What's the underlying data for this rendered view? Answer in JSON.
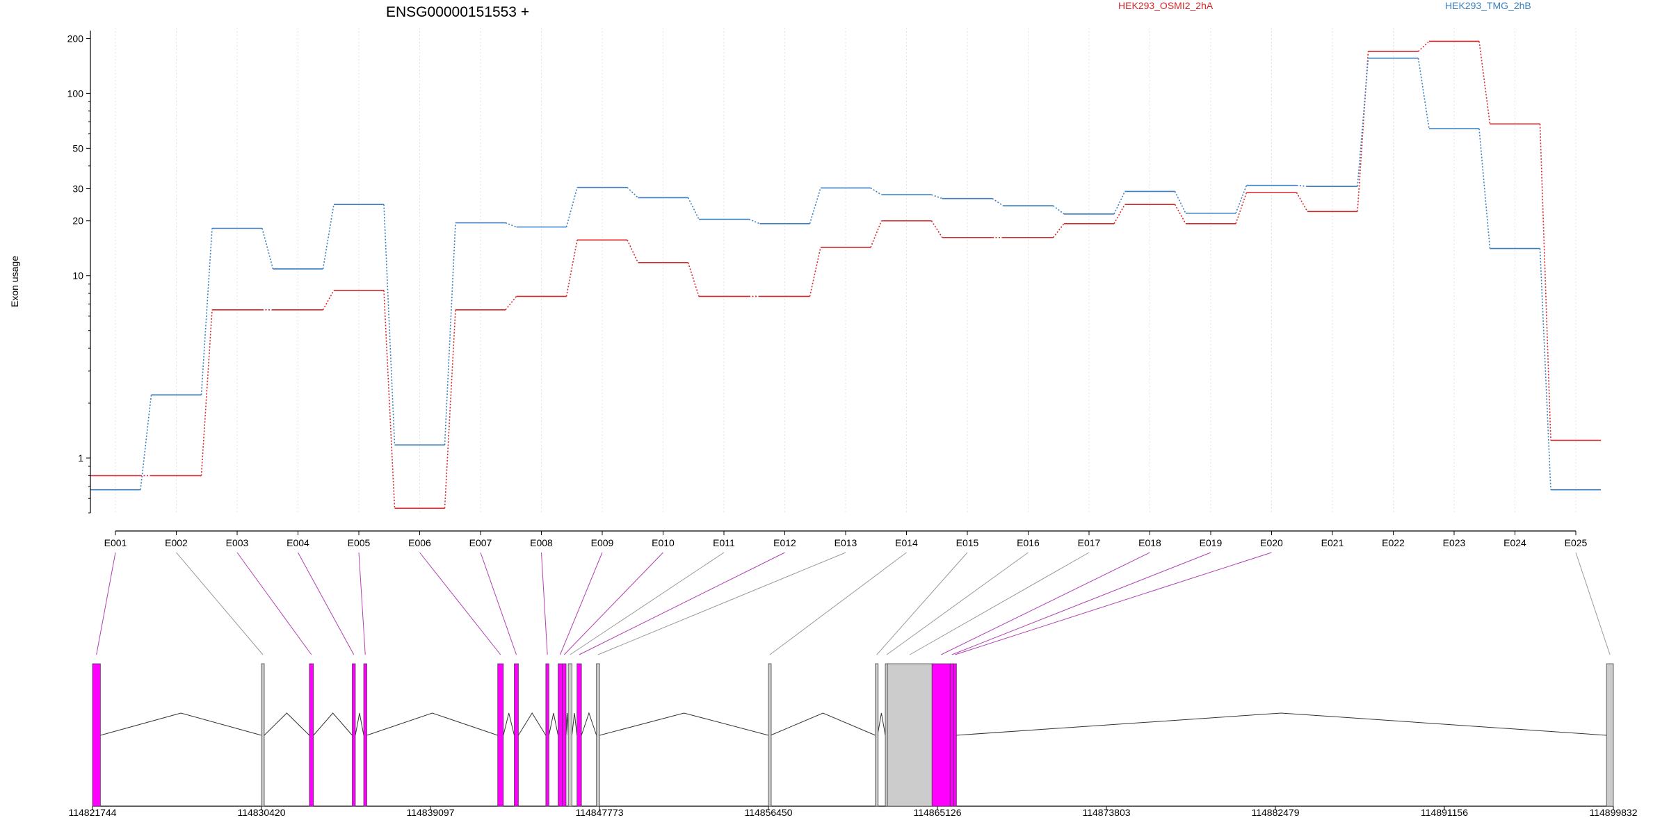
{
  "chart_data": [
    {
      "type": "line",
      "title": "ENSG00000151553 +",
      "ylabel": "Exon usage",
      "xlabel": "",
      "scale": "log",
      "ylim": [
        0.5,
        250
      ],
      "grid": "vertical-dotted",
      "legend_position": "top",
      "y_ticks": [
        1,
        10,
        20,
        30,
        50,
        100,
        200
      ],
      "y_tick_labels": [
        "1",
        "10",
        "20",
        "30",
        "50",
        "100",
        "200"
      ],
      "categories": [
        "E001",
        "E002",
        "E003",
        "E004",
        "E005",
        "E006",
        "E007",
        "E008",
        "E009",
        "E010",
        "E011",
        "E012",
        "E013",
        "E014",
        "E015",
        "E016",
        "E017",
        "E018",
        "E019",
        "E020",
        "E021",
        "E022",
        "E023",
        "E024",
        "E025"
      ],
      "series": [
        {
          "name": "HEK293_OSMI2_2hA",
          "color": "#d62728",
          "values": [
            0.8,
            0.8,
            6.5,
            6.5,
            8.3,
            0.53,
            6.5,
            7.7,
            15.7,
            11.8,
            7.7,
            7.7,
            14.3,
            20.0,
            16.2,
            16.2,
            19.3,
            24.6,
            19.3,
            28.6,
            22.5,
            170,
            193,
            68,
            1.25
          ]
        },
        {
          "name": "HEK293_TMG_2hB",
          "color": "#3a7fc1",
          "values": [
            0.67,
            2.22,
            18.2,
            10.9,
            24.6,
            1.18,
            19.5,
            18.5,
            30.5,
            26.8,
            20.4,
            19.3,
            30.3,
            27.8,
            26.5,
            24.2,
            21.8,
            29.0,
            22.0,
            31.3,
            30.9,
            156,
            64,
            14.1,
            0.67
          ]
        }
      ]
    },
    {
      "type": "gene-model",
      "xlim": [
        114821744,
        114899832
      ],
      "x_ticks": [
        114821744,
        114830420,
        114839097,
        114847773,
        114856450,
        114865126,
        114873803,
        114882479,
        114891156,
        114899832
      ],
      "x_tick_labels": [
        "114821744",
        "114830420",
        "114839097",
        "114847773",
        "114856450",
        "114865126",
        "114873803",
        "114882479",
        "114891156",
        "114899832"
      ],
      "highlight_color": "#ff00ff",
      "normal_color": "#cccccc",
      "exons": [
        {
          "id": "E001",
          "start": 114821744,
          "end": 114822150,
          "highlighted": true
        },
        {
          "id": "E002",
          "start": 114830420,
          "end": 114830560,
          "highlighted": false
        },
        {
          "id": "E003",
          "start": 114832880,
          "end": 114833090,
          "highlighted": true
        },
        {
          "id": "E004",
          "start": 114835080,
          "end": 114835240,
          "highlighted": true
        },
        {
          "id": "E005",
          "start": 114835670,
          "end": 114835830,
          "highlighted": true
        },
        {
          "id": "E006",
          "start": 114842550,
          "end": 114842840,
          "highlighted": true
        },
        {
          "id": "E007",
          "start": 114843400,
          "end": 114843610,
          "highlighted": true
        },
        {
          "id": "E008",
          "start": 114845020,
          "end": 114845180,
          "highlighted": true
        },
        {
          "id": "E009",
          "start": 114845650,
          "end": 114845860,
          "highlighted": true
        },
        {
          "id": "E010",
          "start": 114845860,
          "end": 114846060,
          "highlighted": true
        },
        {
          "id": "E011",
          "start": 114846170,
          "end": 114846360,
          "highlighted": false
        },
        {
          "id": "E012",
          "start": 114846620,
          "end": 114846850,
          "highlighted": true
        },
        {
          "id": "E013",
          "start": 114847620,
          "end": 114847780,
          "highlighted": false
        },
        {
          "id": "E014",
          "start": 114856450,
          "end": 114856560,
          "highlighted": false
        },
        {
          "id": "E015",
          "start": 114861940,
          "end": 114862050,
          "highlighted": false
        },
        {
          "id": "E016",
          "start": 114862450,
          "end": 114862560,
          "highlighted": false
        },
        {
          "id": "E017",
          "start": 114862560,
          "end": 114864850,
          "highlighted": false
        },
        {
          "id": "E018",
          "start": 114864850,
          "end": 114865780,
          "highlighted": true
        },
        {
          "id": "E019",
          "start": 114865780,
          "end": 114865960,
          "highlighted": true
        },
        {
          "id": "E020",
          "start": 114865960,
          "end": 114866060,
          "highlighted": true
        },
        {
          "id": "E025",
          "start": 114899480,
          "end": 114899832,
          "highlighted": false
        }
      ]
    }
  ]
}
